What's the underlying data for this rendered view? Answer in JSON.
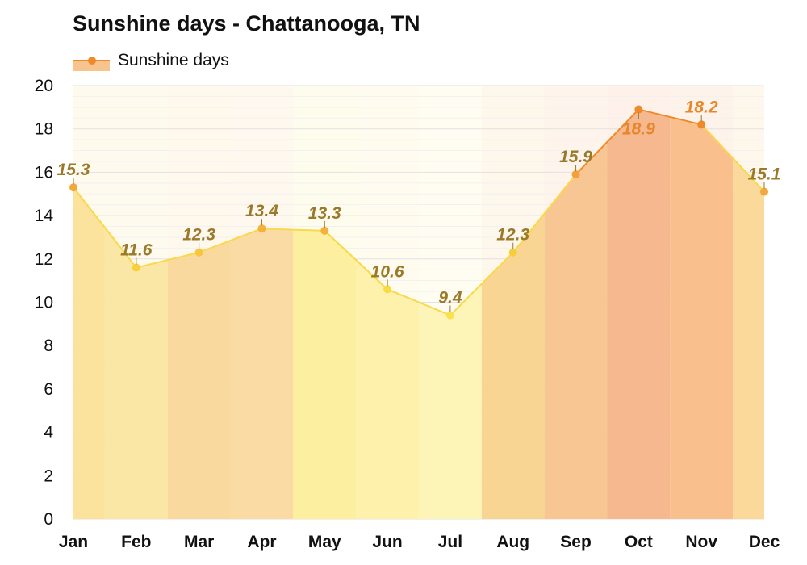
{
  "chart_data": {
    "type": "area",
    "title": "Sunshine days - Chattanooga, TN",
    "xlabel": "",
    "ylabel": "",
    "categories": [
      "Jan",
      "Feb",
      "Mar",
      "Apr",
      "May",
      "Jun",
      "Jul",
      "Aug",
      "Sep",
      "Oct",
      "Nov",
      "Dec"
    ],
    "series": [
      {
        "name": "Sunshine days",
        "values": [
          15.3,
          11.6,
          12.3,
          13.4,
          13.3,
          10.6,
          9.4,
          12.3,
          15.9,
          18.9,
          18.2,
          15.1
        ]
      }
    ],
    "value_labels": [
      "15.3",
      "11.6",
      "12.3",
      "13.4",
      "13.3",
      "10.6",
      "9.4",
      "12.3",
      "15.9",
      "18.9",
      "18.2",
      "15.1"
    ],
    "ylim": [
      0,
      20
    ],
    "yticks": [
      "0",
      "2",
      "4",
      "6",
      "8",
      "10",
      "12",
      "14",
      "16",
      "18",
      "20"
    ],
    "grid": true,
    "legend_position": "top-left",
    "colors": {
      "line_low": "#f9d84a",
      "line_high": "#ef8a2a",
      "label_dark": "#9a7a2a",
      "label_orange": "#e8862a",
      "fill_bands": [
        "#fbe29a",
        "#fbe6a0",
        "#f9d79a",
        "#fad99e",
        "#fcef9c",
        "#fdf0a8",
        "#fdf4b4",
        "#f9d38e",
        "#f8c38e",
        "#f6b48a",
        "#f9bd88",
        "#fbd797"
      ]
    }
  }
}
